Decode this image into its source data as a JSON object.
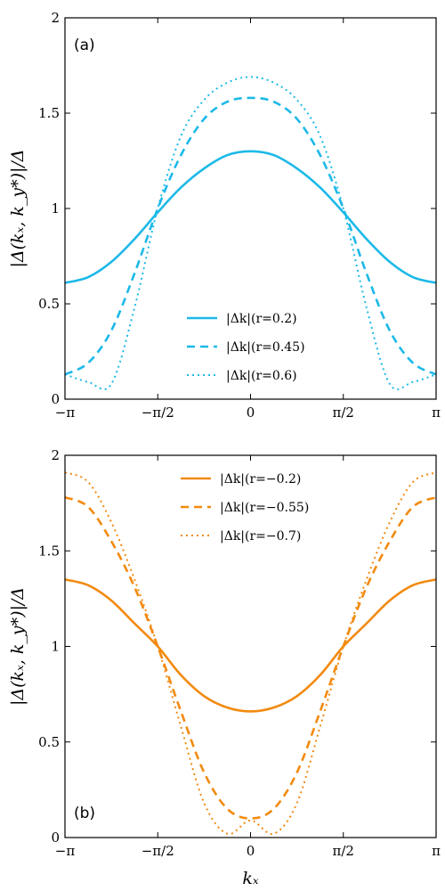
{
  "chart_data": [
    {
      "type": "line",
      "panel_label": "(a)",
      "ylabel": "|Δ(kₓ, k_y*)|/Δ",
      "xlabel": "",
      "xlim": [
        -3.14159,
        3.14159
      ],
      "ylim": [
        0,
        2
      ],
      "x_tick_labels": [
        "−π",
        "−π/2",
        "0",
        "π/2",
        "π"
      ],
      "y_tick_labels": [
        "0",
        "0.5",
        "1",
        "1.5",
        "2"
      ],
      "x": [
        -3.1416,
        -2.7489,
        -2.3562,
        -1.9635,
        -1.5708,
        -1.1781,
        -0.7854,
        -0.3927,
        0,
        0.3927,
        0.7854,
        1.1781,
        1.5708,
        1.9635,
        2.3562,
        2.7489,
        3.1416
      ],
      "color": "#1cb9e8",
      "legend_position": "lower-center",
      "series": [
        {
          "name": "|Δk|(r=0.2)",
          "style": "solid",
          "values": [
            0.61,
            0.64,
            0.72,
            0.84,
            0.98,
            1.11,
            1.21,
            1.28,
            1.3,
            1.28,
            1.21,
            1.11,
            0.98,
            0.84,
            0.72,
            0.64,
            0.61
          ]
        },
        {
          "name": "|Δk|(r=0.45)",
          "style": "dashed",
          "values": [
            0.13,
            0.19,
            0.36,
            0.66,
            1.0,
            1.28,
            1.47,
            1.56,
            1.58,
            1.56,
            1.47,
            1.28,
            1.0,
            0.66,
            0.36,
            0.19,
            0.13
          ]
        },
        {
          "name": "|Δk|(r=0.6)",
          "style": "dotted",
          "values": [
            0.13,
            0.09,
            0.08,
            0.48,
            1.0,
            1.38,
            1.57,
            1.66,
            1.69,
            1.66,
            1.57,
            1.38,
            1.0,
            0.48,
            0.08,
            0.09,
            0.13
          ]
        }
      ]
    },
    {
      "type": "line",
      "panel_label": "(b)",
      "ylabel": "|Δ(kₓ, k_y*)|/Δ",
      "xlabel": "kₓ",
      "xlim": [
        -3.14159,
        3.14159
      ],
      "ylim": [
        0,
        2
      ],
      "x_tick_labels": [
        "−π",
        "−π/2",
        "0",
        "π/2",
        "π"
      ],
      "y_tick_labels": [
        "0",
        "0.5",
        "1",
        "1.5",
        "2"
      ],
      "x": [
        -3.1416,
        -2.7489,
        -2.3562,
        -1.9635,
        -1.5708,
        -1.1781,
        -0.7854,
        -0.3927,
        0,
        0.3927,
        0.7854,
        1.1781,
        1.5708,
        1.9635,
        2.3562,
        2.7489,
        3.1416
      ],
      "color": "#f28a10",
      "legend_position": "top-center",
      "series": [
        {
          "name": "|Δk|(r=−0.2)",
          "style": "solid",
          "values": [
            1.35,
            1.32,
            1.24,
            1.12,
            1.0,
            0.85,
            0.74,
            0.68,
            0.66,
            0.68,
            0.74,
            0.85,
            1.0,
            1.12,
            1.24,
            1.32,
            1.35
          ]
        },
        {
          "name": "|Δk|(r=−0.55)",
          "style": "dashed",
          "values": [
            1.78,
            1.73,
            1.55,
            1.31,
            1.0,
            0.66,
            0.34,
            0.15,
            0.1,
            0.15,
            0.34,
            0.66,
            1.0,
            1.31,
            1.55,
            1.73,
            1.78
          ]
        },
        {
          "name": "|Δk|(r=−0.7)",
          "style": "dotted",
          "values": [
            1.91,
            1.86,
            1.65,
            1.35,
            1.0,
            0.58,
            0.18,
            0.02,
            0.09,
            0.02,
            0.18,
            0.58,
            1.0,
            1.35,
            1.65,
            1.86,
            1.91
          ]
        }
      ]
    }
  ]
}
